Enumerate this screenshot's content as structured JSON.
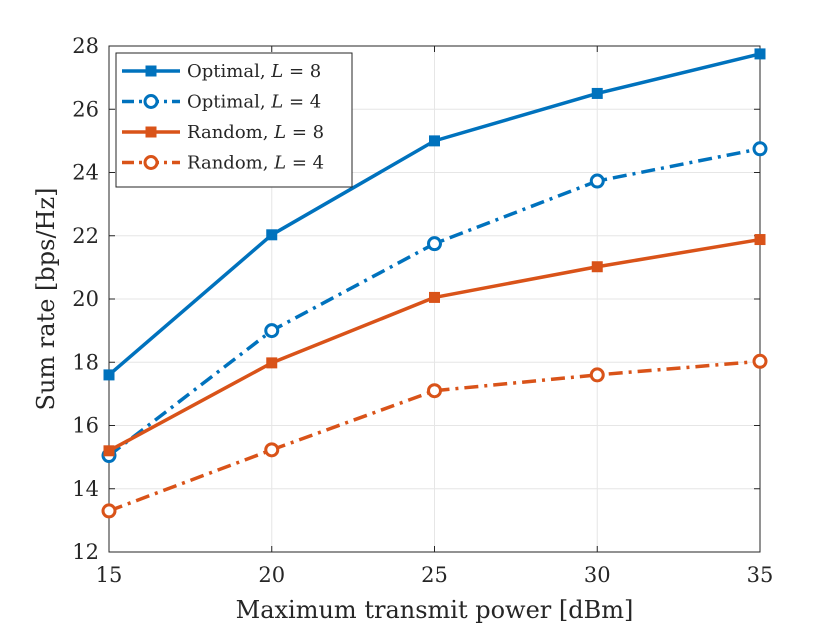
{
  "chart_data": {
    "type": "line",
    "title": "",
    "xlabel": "Maximum transmit power [dBm]",
    "ylabel": "Sum rate [bps/Hz]",
    "x": [
      15,
      20,
      25,
      30,
      35
    ],
    "xlim": [
      15,
      35
    ],
    "ylim": [
      12,
      28
    ],
    "xticks": [
      15,
      20,
      25,
      30,
      35
    ],
    "yticks": [
      12,
      14,
      16,
      18,
      20,
      22,
      24,
      26,
      28
    ],
    "grid": true,
    "legend_position": "top-left",
    "series": [
      {
        "name": "Optimal, L = 8",
        "label_prefix": "Optimal, ",
        "label_var": "L",
        "label_rest": " = 8",
        "values": [
          17.6,
          22.03,
          25.0,
          26.5,
          27.75
        ],
        "color": "#0072BD",
        "linestyle": "solid",
        "marker": "square"
      },
      {
        "name": "Optimal, L = 4",
        "label_prefix": "Optimal, ",
        "label_var": "L",
        "label_rest": " = 4",
        "values": [
          15.05,
          19.0,
          21.75,
          23.73,
          24.75
        ],
        "color": "#0072BD",
        "linestyle": "dashdot",
        "marker": "circle"
      },
      {
        "name": "Random, L = 8",
        "label_prefix": "Random, ",
        "label_var": "L",
        "label_rest": " = 8",
        "values": [
          15.2,
          17.98,
          20.05,
          21.02,
          21.88
        ],
        "color": "#D95319",
        "linestyle": "solid",
        "marker": "square"
      },
      {
        "name": "Random, L = 4",
        "label_prefix": "Random, ",
        "label_var": "L",
        "label_rest": " = 4",
        "values": [
          13.3,
          15.23,
          17.1,
          17.6,
          18.03
        ],
        "color": "#D95319",
        "linestyle": "dashdot",
        "marker": "circle"
      }
    ]
  }
}
